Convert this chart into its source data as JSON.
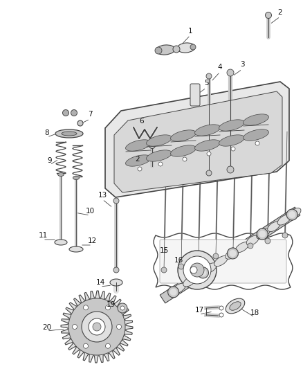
{
  "bg_color": "#ffffff",
  "line_color": "#444444",
  "label_color": "#111111",
  "label_fontsize": 7.5,
  "shade1": "#c8c8c8",
  "shade2": "#e0e0e0",
  "shade3": "#b0b0b0",
  "tray_color": "#d4d4d4",
  "tray_edge": "#444444"
}
